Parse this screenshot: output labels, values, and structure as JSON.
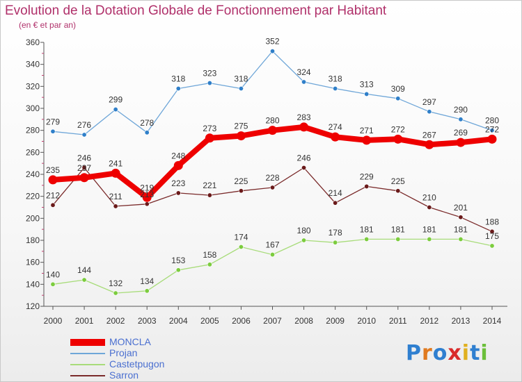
{
  "title": "Evolution de la Dotation Globale de Fonctionnement par Habitant",
  "subtitle": "(en € et par an)",
  "brand": {
    "letters": [
      "P",
      "r",
      "o",
      "x",
      "i",
      "t",
      "i"
    ],
    "colors": [
      "#2f7fd0",
      "#e07a1f",
      "#2f7fd0",
      "#d92b2b",
      "#e0b01f",
      "#2f7fd0",
      "#6bbf3a"
    ]
  },
  "chart_data": {
    "type": "line",
    "x": [
      2000,
      2001,
      2002,
      2003,
      2004,
      2005,
      2006,
      2007,
      2008,
      2009,
      2010,
      2011,
      2012,
      2013,
      2014
    ],
    "ylim": [
      120,
      360
    ],
    "yticks": [
      120,
      140,
      160,
      180,
      200,
      220,
      240,
      260,
      280,
      300,
      320,
      340,
      360
    ],
    "grid": false,
    "legend": "bottom-left",
    "series": [
      {
        "name": "MONCLA",
        "color": "#ee0000",
        "emphasis": true,
        "values": [
          235,
          237,
          241,
          219,
          248,
          273,
          275,
          280,
          283,
          274,
          271,
          272,
          267,
          269,
          272
        ]
      },
      {
        "name": "Projan",
        "color": "#6ea6d8",
        "point_color": "#2f7fc9",
        "values": [
          279,
          276,
          299,
          278,
          318,
          323,
          318,
          352,
          324,
          318,
          313,
          309,
          297,
          290,
          280
        ]
      },
      {
        "name": "Castetpugon",
        "color": "#a8dc7a",
        "point_color": "#7ccc3e",
        "values": [
          140,
          144,
          132,
          134,
          153,
          158,
          174,
          167,
          180,
          178,
          181,
          181,
          181,
          181,
          175
        ]
      },
      {
        "name": "Sarron",
        "color": "#7a2a2a",
        "point_color": "#6a1a1a",
        "values": [
          212,
          246,
          211,
          213,
          223,
          221,
          225,
          228,
          246,
          214,
          229,
          225,
          210,
          201,
          188
        ]
      }
    ]
  }
}
